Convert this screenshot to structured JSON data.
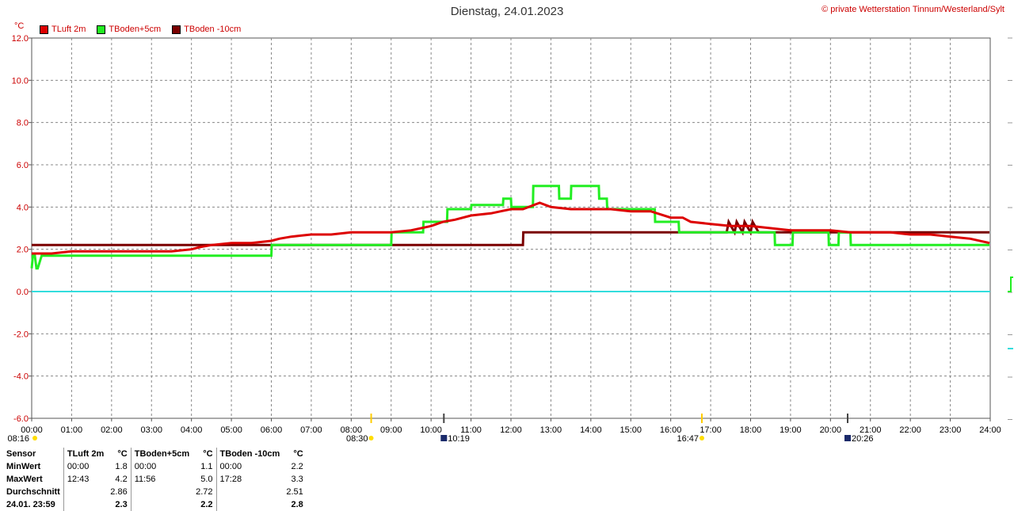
{
  "header": {
    "title": "Dienstag, 24.01.2023",
    "credit": "© private Wetterstation Tinnum/Westerland/Sylt",
    "unit": "°C"
  },
  "legend": [
    {
      "label": "TLuft 2m",
      "color": "#dd0000"
    },
    {
      "label": "TBoden+5cm",
      "color": "#22ee22"
    },
    {
      "label": "TBoden -10cm",
      "color": "#7a0000"
    }
  ],
  "chart_data": {
    "type": "line",
    "ylim": [
      -6,
      12
    ],
    "xlim": [
      0,
      24
    ],
    "y_ticks": [
      "12.0",
      "10.0",
      "8.0",
      "6.0",
      "4.0",
      "2.0",
      "0.0",
      "-2.0",
      "-4.0",
      "-6.0"
    ],
    "x_ticks": [
      "00:00",
      "01:00",
      "02:00",
      "03:00",
      "04:00",
      "05:00",
      "06:00",
      "07:00",
      "08:00",
      "09:00",
      "10:00",
      "11:00",
      "12:00",
      "13:00",
      "14:00",
      "15:00",
      "16:00",
      "17:00",
      "18:00",
      "19:00",
      "20:00",
      "21:00",
      "22:00",
      "23:00",
      "24:00"
    ],
    "grid": true,
    "zero_line_color": "#33dddd",
    "series": [
      {
        "name": "TLuft 2m",
        "color": "#dd0000",
        "x": [
          0,
          0.5,
          1,
          2,
          3,
          3.5,
          4,
          4.2,
          4.5,
          5,
          5.5,
          6,
          6.2,
          6.5,
          7,
          7.5,
          8,
          8.5,
          9,
          9.5,
          10,
          10.3,
          10.6,
          11,
          11.5,
          12,
          12.3,
          12.72,
          13,
          13.5,
          14,
          14.5,
          15,
          15.5,
          16,
          16.3,
          16.5,
          17,
          17.5,
          18,
          18.5,
          19,
          19.5,
          20,
          20.5,
          21,
          21.5,
          22,
          22.5,
          23,
          23.5,
          23.98
        ],
        "y": [
          1.8,
          1.8,
          1.9,
          1.9,
          1.9,
          1.9,
          2.0,
          2.1,
          2.2,
          2.3,
          2.3,
          2.4,
          2.5,
          2.6,
          2.7,
          2.7,
          2.8,
          2.8,
          2.8,
          2.9,
          3.1,
          3.3,
          3.4,
          3.6,
          3.7,
          3.9,
          3.9,
          4.2,
          4.0,
          3.9,
          3.9,
          3.9,
          3.8,
          3.8,
          3.5,
          3.5,
          3.3,
          3.2,
          3.1,
          3.1,
          3.0,
          2.9,
          2.9,
          2.9,
          2.8,
          2.8,
          2.8,
          2.7,
          2.7,
          2.6,
          2.5,
          2.3
        ]
      },
      {
        "name": "TBoden+5cm",
        "color": "#22ee22",
        "x": [
          0,
          0.03,
          0.08,
          0.12,
          0.15,
          0.25,
          0.3,
          6,
          6.01,
          9,
          9.01,
          9.8,
          9.81,
          10.4,
          10.41,
          11,
          11.01,
          11.8,
          11.81,
          12.0,
          12.01,
          12.55,
          12.56,
          12.8,
          12.81,
          13.2,
          13.21,
          13.5,
          13.51,
          14.2,
          14.21,
          14.4,
          14.41,
          15.6,
          15.61,
          16.2,
          16.21,
          17.5,
          17.51,
          18.6,
          18.61,
          19.05,
          19.06,
          19.95,
          19.96,
          20.2,
          20.21,
          20.5,
          20.51,
          20.8,
          20.81,
          23.98
        ],
        "y": [
          1.1,
          1.7,
          1.7,
          1.1,
          1.1,
          1.7,
          1.7,
          1.7,
          2.2,
          2.2,
          2.8,
          2.8,
          3.3,
          3.3,
          3.9,
          3.9,
          4.1,
          4.1,
          4.4,
          4.4,
          4.0,
          4.0,
          5.0,
          5.0,
          5.0,
          5.0,
          4.4,
          4.4,
          5.0,
          5.0,
          4.4,
          4.4,
          3.9,
          3.9,
          3.3,
          3.3,
          2.8,
          2.8,
          2.8,
          2.8,
          2.2,
          2.2,
          2.8,
          2.8,
          2.2,
          2.2,
          2.8,
          2.8,
          2.2,
          2.2,
          2.2,
          2.2
        ]
      },
      {
        "name": "TBoden -10cm",
        "color": "#7a0000",
        "x": [
          0,
          6,
          6.01,
          12.3,
          12.31,
          17.4,
          17.45,
          17.6,
          17.65,
          17.8,
          17.85,
          18.0,
          18.05,
          18.2,
          18.25,
          23.98
        ],
        "y": [
          2.2,
          2.2,
          2.2,
          2.2,
          2.8,
          2.8,
          3.3,
          2.8,
          3.3,
          2.8,
          3.3,
          2.8,
          3.3,
          2.8,
          2.8,
          2.8
        ]
      }
    ],
    "sun_markers": [
      {
        "label": "08:16",
        "time": 0.0
      },
      {
        "label": "08:30",
        "time": 8.5
      },
      {
        "label": "16:47",
        "time": 16.78
      }
    ],
    "moon_markers": [
      {
        "label": "10:19",
        "time": 10.32
      },
      {
        "label": "20:26",
        "time": 20.43
      }
    ]
  },
  "stats": {
    "header": [
      "Sensor",
      "TLuft 2m",
      "°C",
      "TBoden+5cm",
      "°C",
      "TBoden -10cm",
      "°C"
    ],
    "rows": [
      [
        "MinWert",
        "00:00",
        "1.8",
        "00:00",
        "1.1",
        "00:00",
        "2.2"
      ],
      [
        "MaxWert",
        "12:43",
        "4.2",
        "11:56",
        "5.0",
        "17:28",
        "3.3"
      ],
      [
        "Durchschnitt",
        "",
        "2.86",
        "",
        "2.72",
        "",
        "2.51"
      ],
      [
        "24.01. 23:59",
        "",
        "2.3",
        "",
        "2.2",
        "",
        "2.8"
      ]
    ]
  }
}
